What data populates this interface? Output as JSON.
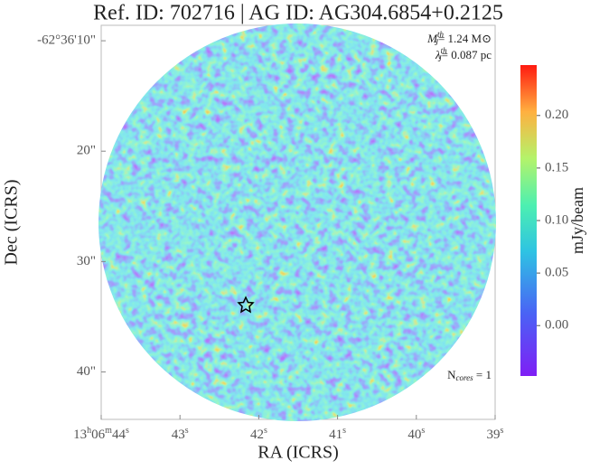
{
  "chart_data": {
    "type": "image",
    "title": "Ref. ID: 702716 | AG ID: AG304.6854+0.2125",
    "xlabel": "RA (ICRS)",
    "ylabel": "Dec (ICRS)",
    "xlim": [
      44,
      39
    ],
    "xticks": [
      {
        "value": 44,
        "label": "13h06m44s"
      },
      {
        "value": 43,
        "label": "43s"
      },
      {
        "value": 42,
        "label": "42s"
      },
      {
        "value": 41,
        "label": "41s"
      },
      {
        "value": 40,
        "label": "40s"
      },
      {
        "value": 39,
        "label": "39s"
      }
    ],
    "ylim": [
      44.3,
      8.6
    ],
    "yticks": [
      {
        "value": 10,
        "label": "-62°36'10\""
      },
      {
        "value": 20,
        "label": "20\""
      },
      {
        "value": 30,
        "label": "30\""
      },
      {
        "value": 40,
        "label": "40\""
      }
    ],
    "colorbar": {
      "label": "mJy/beam",
      "clim": [
        -0.048,
        0.248
      ],
      "ticks": [
        {
          "value": 0,
          "label": "0.00"
        },
        {
          "value": 0.05,
          "label": "0.05"
        },
        {
          "value": 0.1,
          "label": "0.10"
        },
        {
          "value": 0.15,
          "label": "0.15"
        },
        {
          "value": 0.2,
          "label": "0.20"
        }
      ]
    },
    "annotations": [
      {
        "symbol": "M",
        "sub": "J",
        "sup": "th",
        "text": "= 1.24 M⊙"
      },
      {
        "symbol": "λ",
        "sub": "J",
        "sup": "th",
        "text": "= 0.087 pc"
      },
      {
        "symbol": "N",
        "sub": "cores",
        "text": " = 1"
      }
    ]
  }
}
